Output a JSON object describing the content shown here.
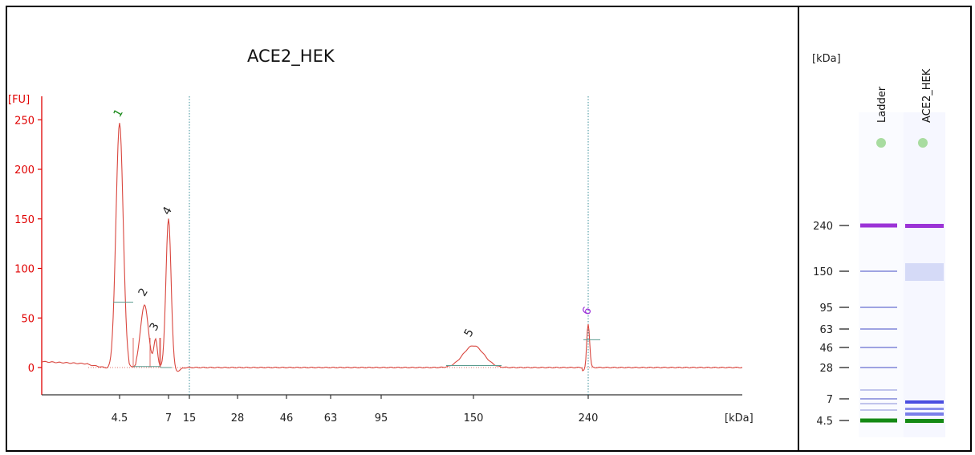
{
  "chart_data": {
    "type": "line",
    "title": "ACE2_HEK",
    "ylabel": "[FU]",
    "xlabel": "[kDa]",
    "ylim": [
      -30,
      275
    ],
    "yticks": [
      0,
      50,
      100,
      150,
      200,
      250
    ],
    "x_tick_labels": [
      "4.5",
      "7",
      "15",
      "28",
      "46",
      "63",
      "95",
      "150",
      "240"
    ],
    "vertical_markers": [
      "15",
      "240"
    ],
    "peaks": [
      {
        "label": "1",
        "x": "4.5",
        "fu": 247
      },
      {
        "label": "2",
        "x": "5.5",
        "fu": 63
      },
      {
        "label": "3",
        "x": "6.3",
        "fu": 28
      },
      {
        "label": "4",
        "x": "7",
        "fu": 150
      },
      {
        "label": "5",
        "x": "150",
        "fu": 22
      },
      {
        "label": "6",
        "x": "240",
        "fu": 44
      }
    ],
    "peak_label_colors": {
      "1": "#1a8a1a",
      "2": "#222222",
      "3": "#222222",
      "4": "#222222",
      "5": "#222222",
      "6": "#9b30d9"
    },
    "line_color": "#d9463e",
    "axis_color": "#e00000"
  },
  "gel": {
    "unit_label": "[kDa]",
    "lanes": [
      "Ladder",
      "ACE2_HEK"
    ],
    "ladder_sizes": [
      "240",
      "150",
      "95",
      "63",
      "46",
      "28",
      "7",
      "4.5"
    ]
  }
}
